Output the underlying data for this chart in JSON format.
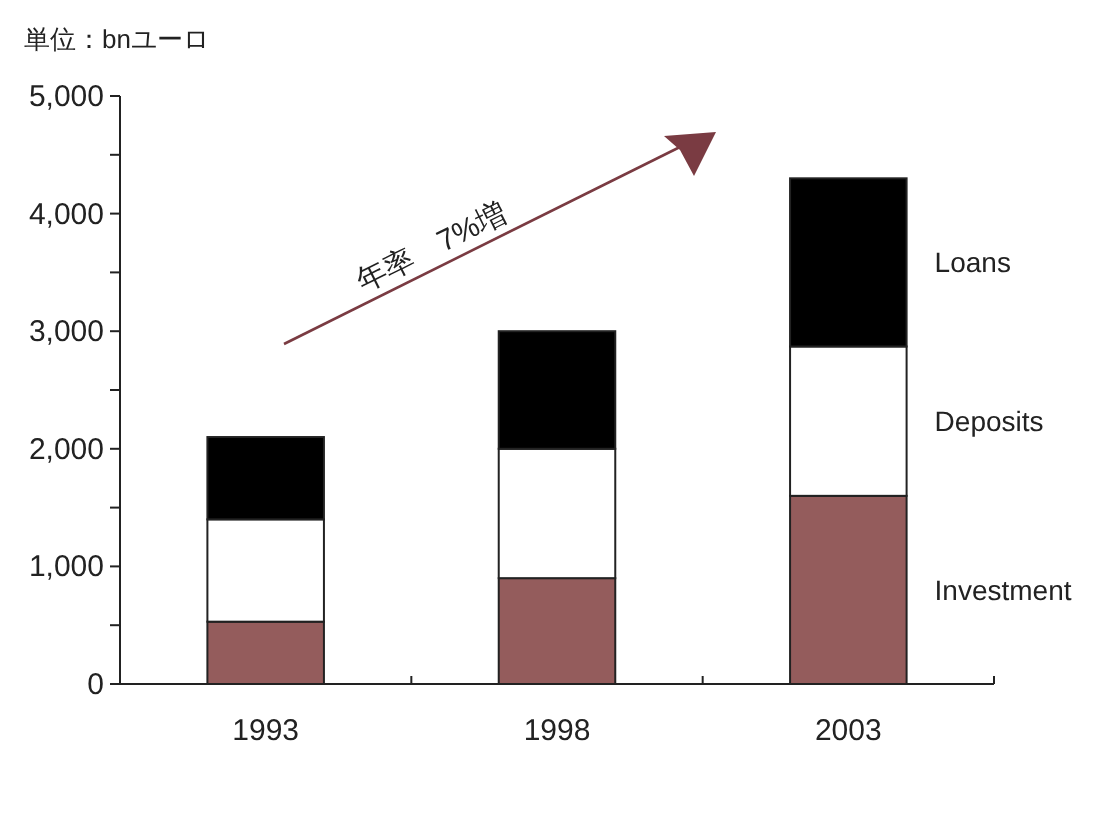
{
  "chart_data": {
    "type": "bar",
    "stacked": true,
    "ylabel": "単位：bnユーロ",
    "categories": [
      "1993",
      "1998",
      "2003"
    ],
    "series": [
      {
        "name": "Investment",
        "color": "#945c5c",
        "values": [
          530,
          900,
          1600
        ]
      },
      {
        "name": "Deposits",
        "color": "#ffffff",
        "values": [
          870,
          1100,
          1270
        ]
      },
      {
        "name": "Loans",
        "color": "#000000",
        "values": [
          700,
          1000,
          1430
        ]
      }
    ],
    "ylim": [
      0,
      5000
    ],
    "yticks": [
      0,
      {
        "value": 500,
        "label": null
      },
      {
        "value": 1000,
        "label": "1,000"
      },
      {
        "value": 1500,
        "label": null
      },
      {
        "value": 2000,
        "label": "2,000"
      },
      {
        "value": 2500,
        "label": null
      },
      {
        "value": 3000,
        "label": "3,000"
      },
      {
        "value": 3500,
        "label": null
      },
      {
        "value": 4000,
        "label": "4,000"
      },
      {
        "value": 4500,
        "label": null
      },
      {
        "value": 5000,
        "label": "5,000"
      }
    ],
    "annotations": [
      "年率　7%増"
    ]
  }
}
